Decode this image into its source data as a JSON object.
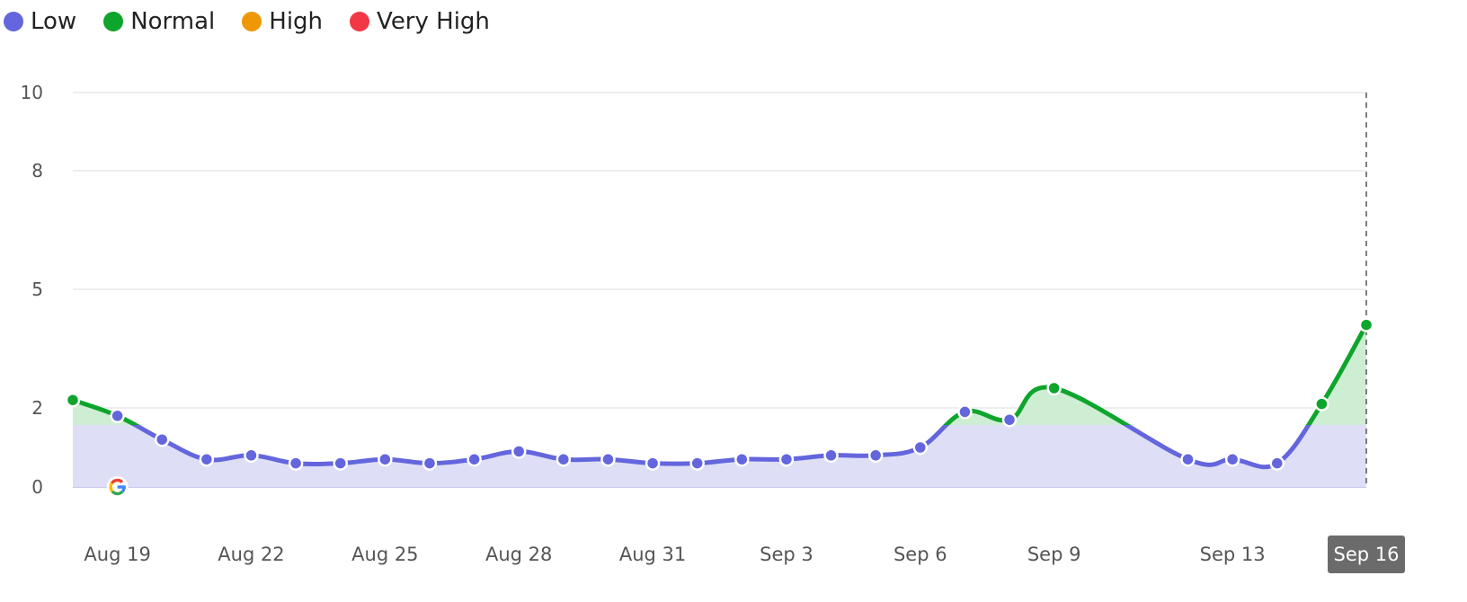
{
  "legend": [
    {
      "label": "Low",
      "color": "#6366DC"
    },
    {
      "label": "Normal",
      "color": "#0EA52C"
    },
    {
      "label": "High",
      "color": "#EE9707"
    },
    {
      "label": "Very High",
      "color": "#F33745"
    }
  ],
  "chart_data": {
    "type": "area",
    "title": "",
    "xlabel": "",
    "ylabel": "",
    "ylim": [
      0,
      10
    ],
    "y_ticks": [
      0,
      2,
      5,
      8,
      10
    ],
    "threshold": 2,
    "grid": true,
    "legend_position": "top-left",
    "x_tick_labels": [
      "Aug 19",
      "Aug 22",
      "Aug 25",
      "Aug 28",
      "Aug 31",
      "Sep 3",
      "Sep 6",
      "Sep 9",
      "Sep 13",
      "Sep 16"
    ],
    "highlighted_x_label": "Sep 16",
    "marker_icon": "google-icon",
    "marker_icon_date": "Aug 19",
    "series": [
      {
        "name": "",
        "x": [
          "Aug 18",
          "Aug 19",
          "Aug 20",
          "Aug 21",
          "Aug 22",
          "Aug 23",
          "Aug 24",
          "Aug 25",
          "Aug 26",
          "Aug 27",
          "Aug 28",
          "Aug 29",
          "Aug 30",
          "Aug 31",
          "Sep 1",
          "Sep 2",
          "Sep 3",
          "Sep 4",
          "Sep 5",
          "Sep 6",
          "Sep 7",
          "Sep 8",
          "Sep 9",
          "Sep 12",
          "Sep 13",
          "Sep 14",
          "Sep 15",
          "Sep 16"
        ],
        "values": [
          2.2,
          1.8,
          1.2,
          0.7,
          0.8,
          0.6,
          0.6,
          0.7,
          0.6,
          0.7,
          0.9,
          0.7,
          0.7,
          0.6,
          0.6,
          0.7,
          0.7,
          0.8,
          0.8,
          1.0,
          1.9,
          1.7,
          2.5,
          0.7,
          0.7,
          0.6,
          2.1,
          4.1
        ]
      }
    ]
  }
}
